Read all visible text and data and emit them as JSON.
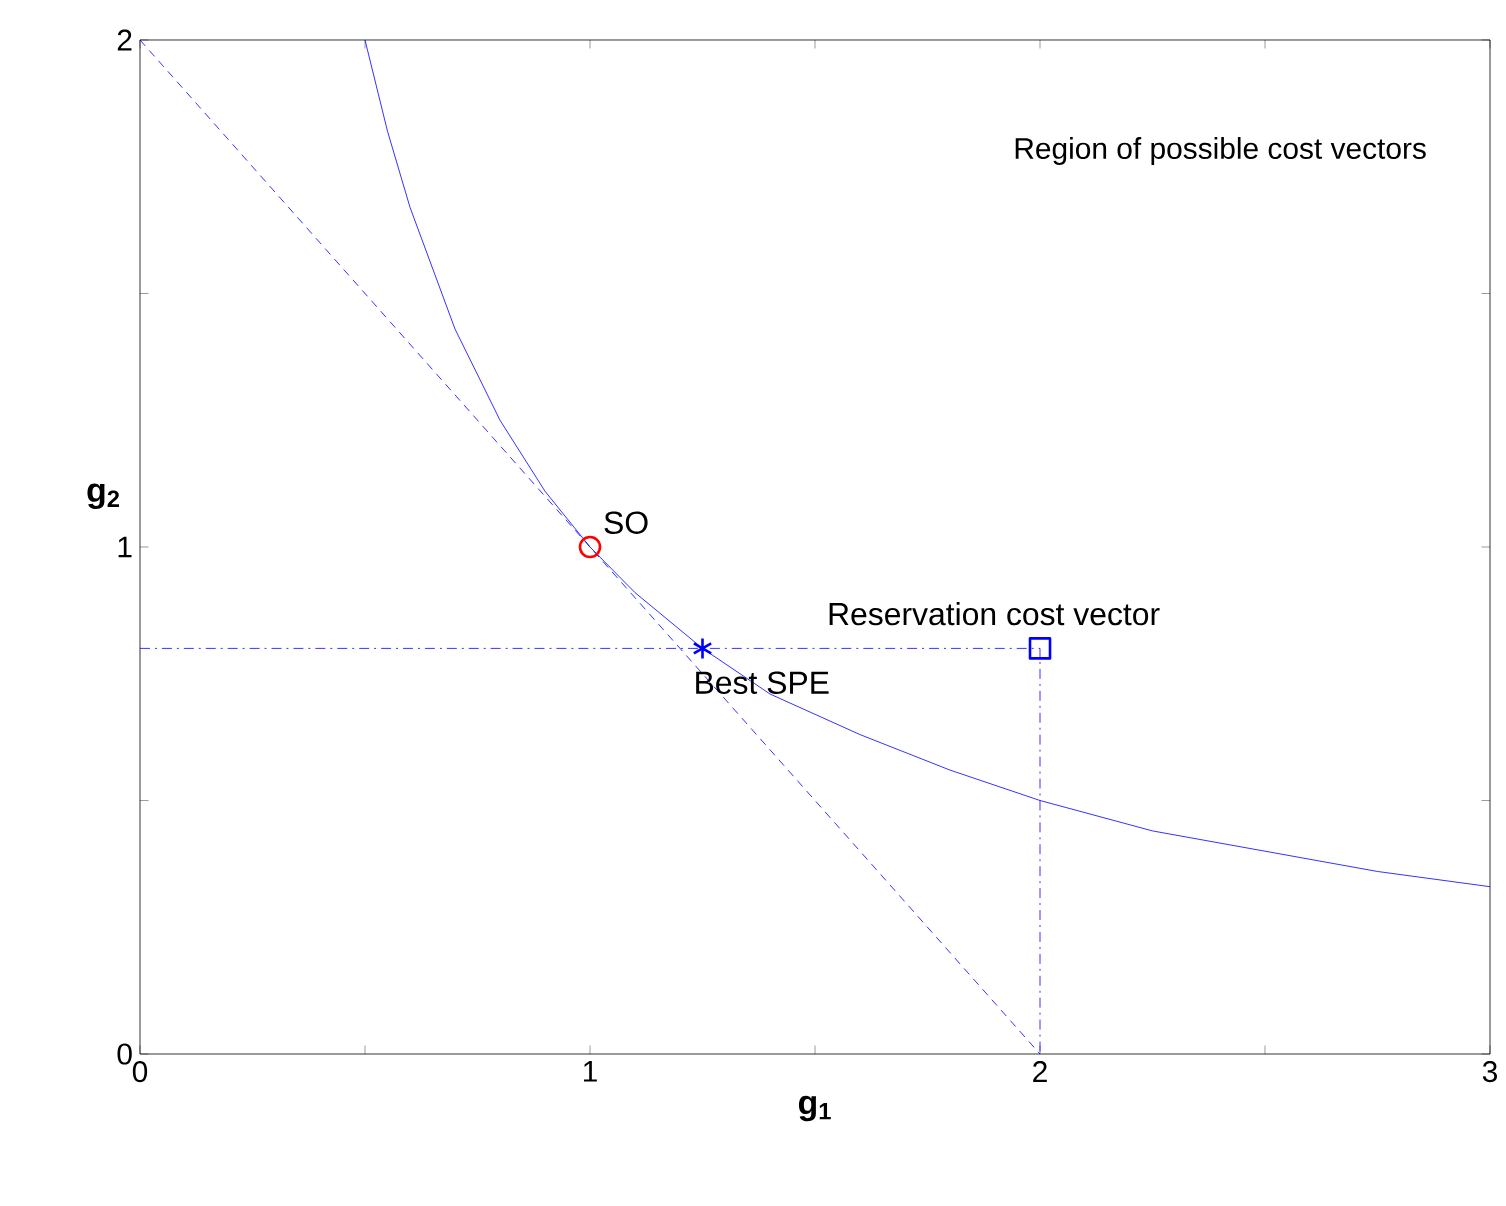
{
  "chart_data": {
    "type": "line",
    "xlabel": "**g$_{1}$**",
    "ylabel": "**g$_{2}$**",
    "xlim": [
      0,
      3
    ],
    "ylim": [
      0,
      2
    ],
    "xticks": [
      0,
      {
        "value": 0.5,
        "label": null
      },
      1,
      {
        "value": 1.5,
        "label": null
      },
      2,
      {
        "value": 2.5,
        "label": null
      },
      3
    ],
    "yticks": [
      0,
      {
        "value": 0.5,
        "label": null
      },
      1,
      {
        "value": 1.5,
        "label": null
      },
      2
    ],
    "grid": false,
    "series": [
      {
        "color": "#0000ff",
        "line_style": "solid",
        "marker": "none",
        "x": [
          0.5,
          0.55,
          0.6,
          0.7,
          0.8,
          0.9,
          1,
          1.1,
          1.25,
          1.4,
          1.6,
          1.8,
          2,
          2.25,
          2.5,
          2.75,
          3
        ],
        "values": [
          2,
          1.82,
          1.67,
          1.43,
          1.25,
          1.11,
          1,
          0.91,
          0.8,
          0.71,
          0.63,
          0.56,
          0.5,
          0.44,
          0.4,
          0.36,
          0.33
        ]
      },
      {
        "color": "#0000ff",
        "line_style": "dashed",
        "marker": "none",
        "x": [
          0,
          2
        ],
        "values": [
          2,
          0
        ]
      },
      {
        "color": "#0000ff",
        "line_style": "dashdot",
        "marker": "none",
        "x": [
          0,
          2,
          2
        ],
        "values": [
          0.8,
          0.8,
          0
        ]
      },
      {
        "type": "scatter",
        "color": "#ff0000",
        "marker": "circle",
        "x": [
          1
        ],
        "values": [
          1
        ]
      },
      {
        "type": "scatter",
        "color": "#0000ff",
        "marker": "cross",
        "x": [
          1.25
        ],
        "values": [
          0.8
        ]
      },
      {
        "type": "scatter",
        "color": "#0000ff",
        "marker": "square",
        "x": [
          2
        ],
        "values": [
          0.8
        ]
      }
    ],
    "annotations": [
      {
        "text": "SO",
        "x": 1,
        "y": 1
      },
      {
        "text": "Best SPE",
        "x": 1.25,
        "y": 0.8
      },
      {
        "text": "Reservation cost vector",
        "x": 2,
        "y": 0.8
      },
      "Region of possible cost vectors"
    ]
  }
}
